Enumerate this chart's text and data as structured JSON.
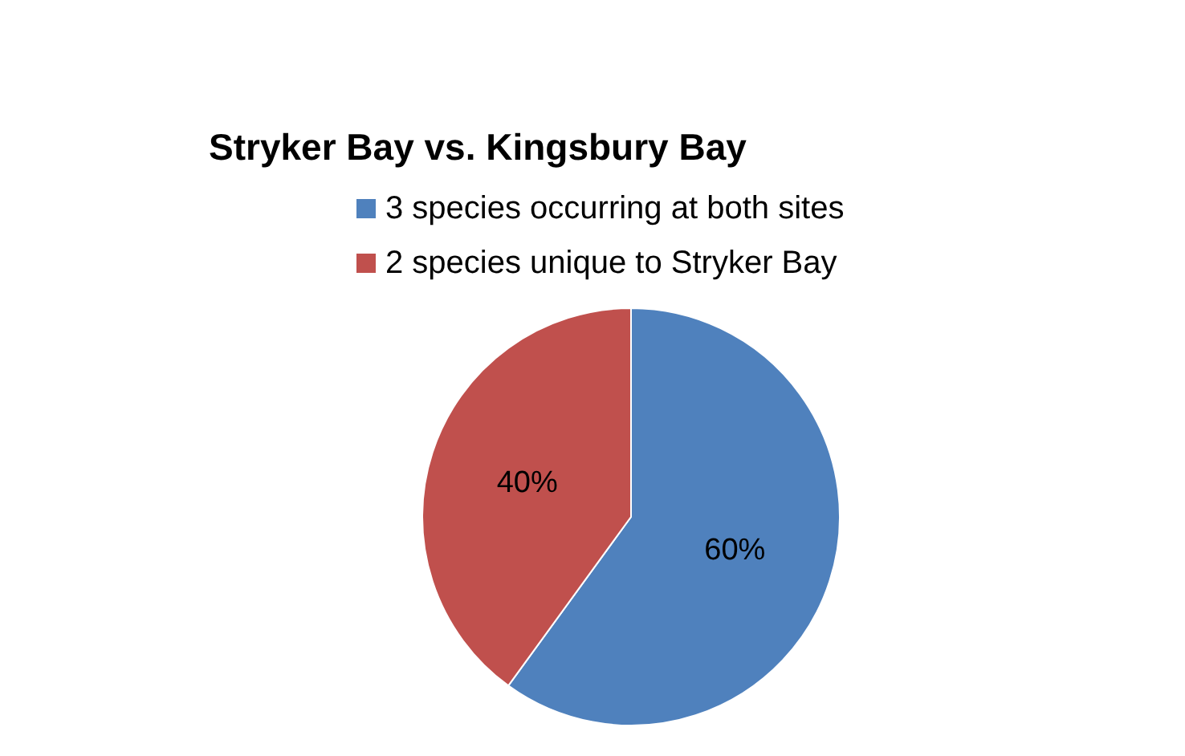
{
  "chart_data": {
    "type": "pie",
    "title": "Stryker Bay vs. Kingsbury Bay",
    "categories": [
      "3 species occurring at both sites",
      "2 species unique to Stryker Bay"
    ],
    "values": [
      60,
      40
    ],
    "colors": [
      "#4f81bd",
      "#c0504d"
    ],
    "value_labels": [
      "60%",
      "40%"
    ],
    "legend": "top"
  }
}
